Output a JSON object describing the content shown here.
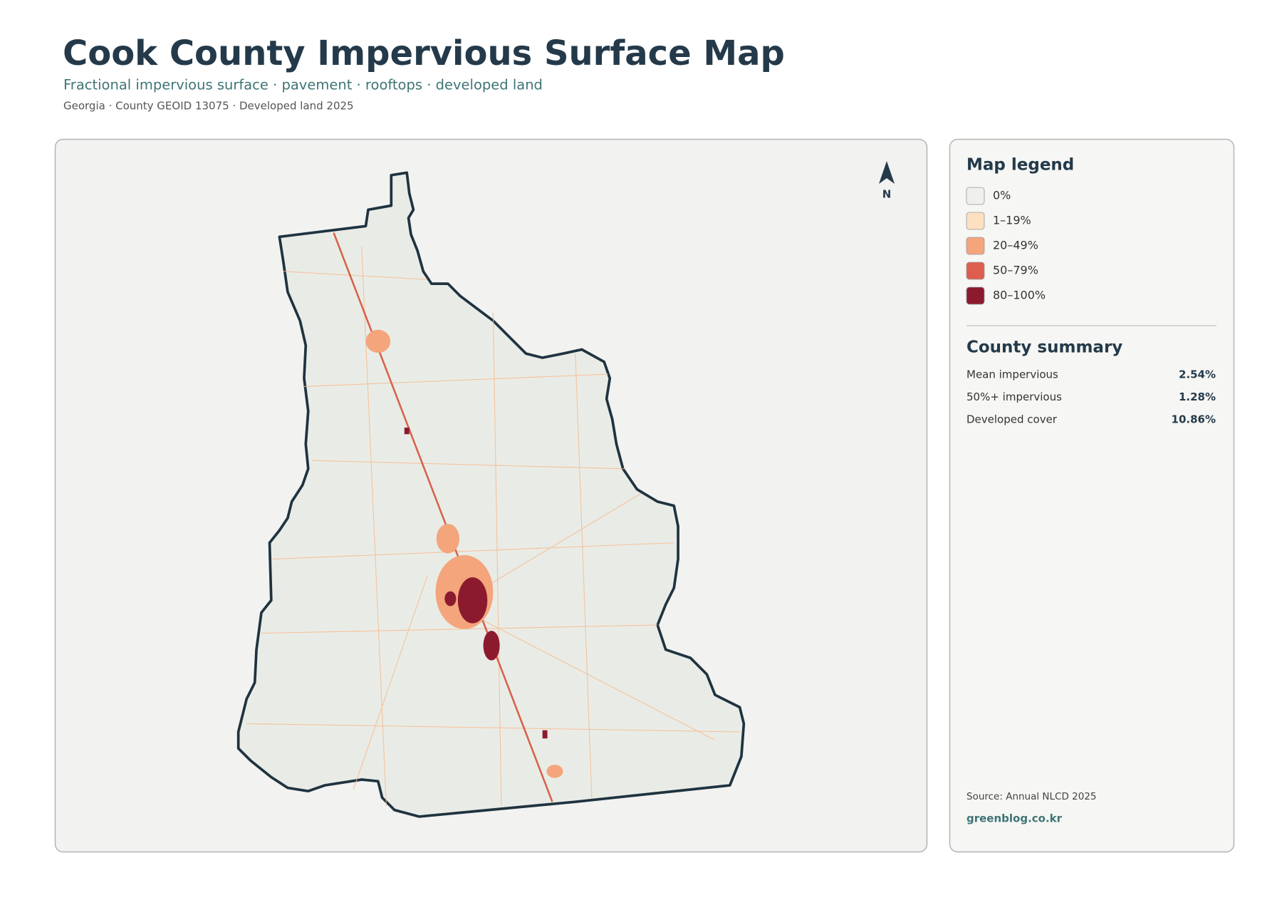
{
  "header": {
    "title": "Cook County Impervious Surface Map",
    "subtitle": "Fractional impervious surface · pavement · rooftops · developed land",
    "meta": "Georgia · County GEOID 13075 · Developed land 2025"
  },
  "north": "N",
  "legend": {
    "title": "Map legend",
    "items": [
      {
        "label": "0%",
        "color": "#efefec"
      },
      {
        "label": "1–19%",
        "color": "#fde0c0"
      },
      {
        "label": "20–49%",
        "color": "#f4a57c"
      },
      {
        "label": "50–79%",
        "color": "#dd5e4d"
      },
      {
        "label": "80–100%",
        "color": "#8b1a2f"
      }
    ]
  },
  "summary": {
    "title": "County summary",
    "rows": [
      {
        "label": "Mean impervious",
        "value": "2.54%"
      },
      {
        "label": "50%+ impervious",
        "value": "1.28%"
      },
      {
        "label": "Developed cover",
        "value": "10.86%"
      }
    ]
  },
  "footer": {
    "source": "Source: Annual NLCD 2025",
    "site": "greenblog.co.kr"
  }
}
